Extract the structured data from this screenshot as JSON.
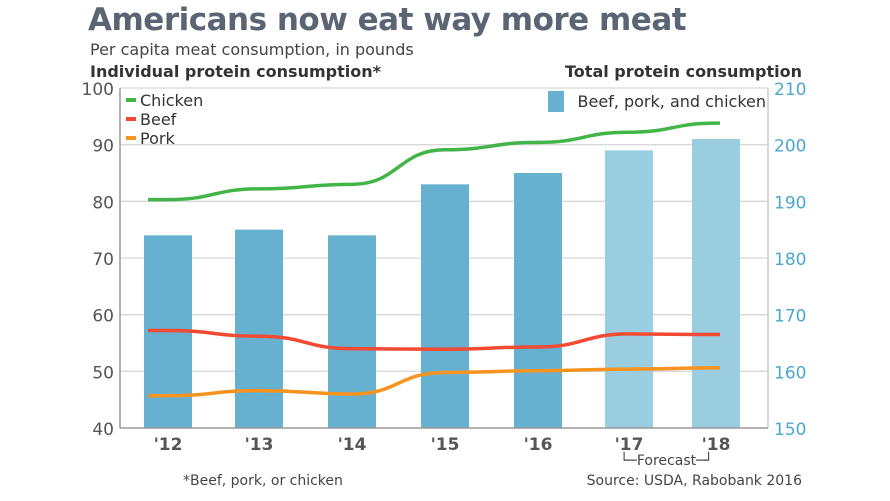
{
  "title": "Americans now eat way more meat",
  "subtitle": "Per capita meat consumption, in pounds",
  "left_axis_title": "Individual protein consumption*",
  "right_axis_title": "Total protein consumption",
  "footnote": "*Beef, pork, or chicken",
  "source": "Source: USDA, Rabobank 2016",
  "forecast_label": "└─Forecast─┘",
  "chart_data": {
    "type": "bar+line",
    "categories": [
      "'12",
      "'13",
      "'14",
      "'15",
      "'16",
      "'17",
      "'18"
    ],
    "forecast_categories": [
      "'17",
      "'18"
    ],
    "left_axis": {
      "label": "Individual protein consumption*",
      "ylim": [
        40,
        100
      ],
      "ticks": [
        40,
        50,
        60,
        70,
        80,
        90,
        100
      ]
    },
    "right_axis": {
      "label": "Total protein consumption",
      "ylim": [
        150,
        210
      ],
      "ticks": [
        150,
        160,
        170,
        180,
        190,
        200,
        210
      ]
    },
    "bars": {
      "name": "Beef, pork, and chicken",
      "axis": "right",
      "values": [
        184,
        185,
        184,
        193,
        195,
        199,
        201
      ],
      "color": "#67b1d0",
      "forecast_color": "#9acde0"
    },
    "series": [
      {
        "name": "Chicken",
        "axis": "left",
        "color": "#43b548",
        "values": [
          80.3,
          82.2,
          83.0,
          89.1,
          90.4,
          92.2,
          93.8
        ]
      },
      {
        "name": "Beef",
        "axis": "left",
        "color": "#f24a33",
        "values": [
          57.2,
          56.2,
          54.0,
          53.9,
          54.3,
          56.6,
          56.5
        ]
      },
      {
        "name": "Pork",
        "axis": "left",
        "color": "#f7931e",
        "values": [
          45.7,
          46.6,
          46.0,
          49.8,
          50.1,
          50.4,
          50.6
        ]
      }
    ],
    "grid": true,
    "legend_lines": "top-left",
    "legend_bars": "top-right",
    "right_tick_color": "#4aa8cf"
  }
}
